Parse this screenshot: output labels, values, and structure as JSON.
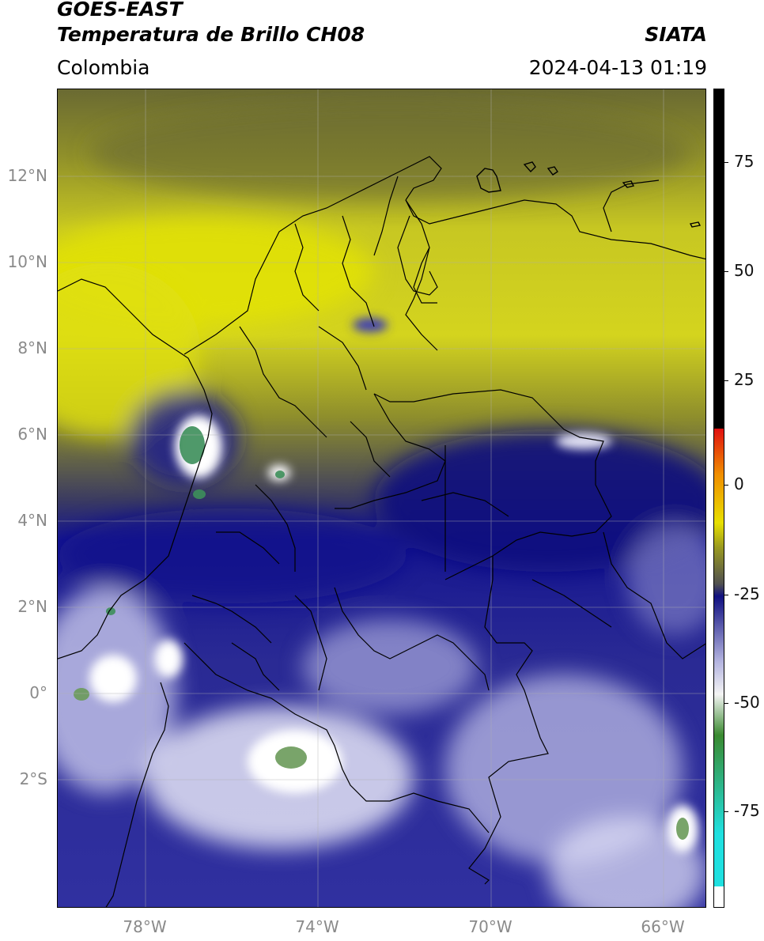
{
  "header": {
    "title_line1": "GOES-EAST",
    "title_line2": "Temperatura de Brillo CH08",
    "brand": "SIATA",
    "region": "Colombia",
    "timestamp": "2024-04-13 01:19"
  },
  "map": {
    "lat_labels": [
      "12°N",
      "10°N",
      "8°N",
      "6°N",
      "4°N",
      "2°N",
      "0°",
      "2°S"
    ],
    "lon_labels": [
      "78°W",
      "74°W",
      "70°W",
      "66°W"
    ],
    "features": [
      "coastline",
      "country-borders",
      "department-borders",
      "gridlines"
    ]
  },
  "colorbar": {
    "tick_labels": [
      "75",
      "50",
      "25",
      "0",
      "-25",
      "-50",
      "-75"
    ],
    "range": [
      -97,
      90
    ],
    "colors": {
      "hot": "#000000",
      "red": "#e01010",
      "orange": "#f08c00",
      "yellow": "#e8e000",
      "olive": "#9a9a20",
      "gray": "#505050",
      "navy": "#101080",
      "lavender": "#b4b4e0",
      "white": "#f4f4f4",
      "green": "#3a8a30",
      "cyan": "#20e0e0"
    }
  }
}
